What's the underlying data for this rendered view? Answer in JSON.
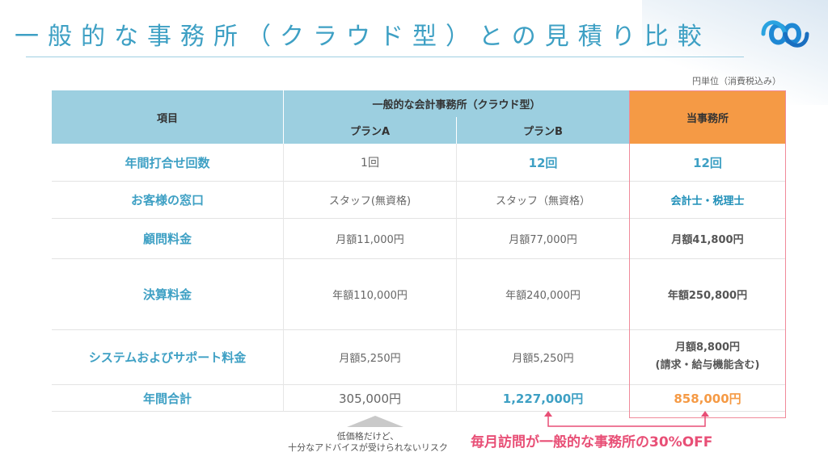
{
  "header": {
    "title": "一般的な事務所（クラウド型）との見積り比較",
    "logo_icon": "infinity-logo-icon",
    "unit_note": "円単位（消費税込み）"
  },
  "table": {
    "col_item": "項目",
    "group_header": "一般的な会計事務所（クラウド型）",
    "plan_a": "プランA",
    "plan_b": "プランB",
    "ours": "当事務所",
    "rows": [
      {
        "label": "年間打合せ回数",
        "a": "1回",
        "b": "12回",
        "ours": "12回"
      },
      {
        "label": "お客様の窓口",
        "a": "スタッフ(無資格)",
        "b": "スタッフ（無資格）",
        "ours": "会計士・税理士"
      },
      {
        "label": "顧問料金",
        "a": "月額11,000円",
        "b": "月額77,000円",
        "ours": "月額41,800円"
      },
      {
        "label": "決算料金",
        "a": "年額110,000円",
        "b": "年額240,000円",
        "ours": "年額250,800円"
      },
      {
        "label": "システムおよびサポート料金",
        "a": "月額5,250円",
        "b": "月額5,250円",
        "ours_line1": "月額8,800円",
        "ours_line2": "(請求・給与機能含む)"
      },
      {
        "label": "年間合計",
        "a": "305,000円",
        "b": "1,227,000円",
        "ours": "858,000円"
      }
    ]
  },
  "notes": {
    "risk_line1": "低価格だけど、",
    "risk_line2": "十分なアドバイスが受けられないリスク",
    "promo": "毎月訪問が一般的な事務所の30%OFF"
  },
  "colors": {
    "title_blue": "#3ea0c4",
    "header_blue": "#9ccfe0",
    "orange": "#f59a45",
    "pink": "#e84f76"
  }
}
